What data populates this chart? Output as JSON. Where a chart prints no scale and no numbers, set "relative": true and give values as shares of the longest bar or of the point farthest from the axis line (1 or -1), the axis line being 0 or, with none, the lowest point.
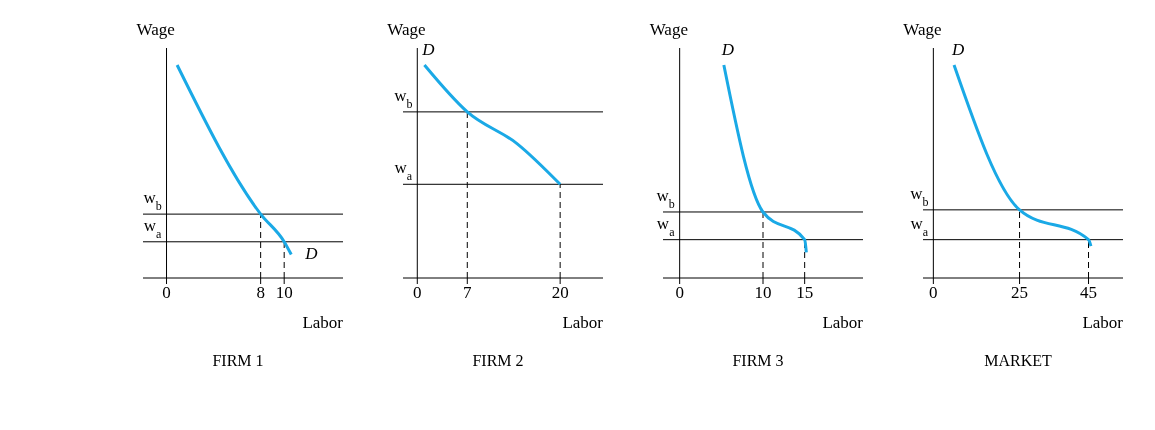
{
  "chart_data": [
    {
      "type": "line",
      "title": "FIRM 1",
      "xlabel": "Labor",
      "ylabel": "Wage",
      "relative": true,
      "xlim": [
        -2,
        15
      ],
      "xticks": [
        0,
        8,
        10
      ],
      "legend": false,
      "marker": "none",
      "annotations": [
        {
          "text": "D",
          "x": 10.6,
          "y": 0.11
        }
      ],
      "series": [
        {
          "color": "#1aa9e6",
          "x": [
            0.9,
            8,
            10,
            10.6
          ],
          "values": [
            1,
            0.3,
            0.17,
            0.11
          ]
        }
      ],
      "ref_lines": [
        {
          "axis": "y",
          "value": 0.3,
          "label": "w$_{b}$"
        },
        {
          "axis": "y",
          "value": 0.17,
          "label": "w$_{a}$"
        },
        {
          "axis": "x",
          "value": 8,
          "line_style": "dashed"
        },
        {
          "axis": "x",
          "value": 10,
          "line_style": "dashed"
        }
      ]
    },
    {
      "type": "line",
      "title": "FIRM 2",
      "xlabel": "Labor",
      "ylabel": "Wage",
      "relative": true,
      "xlim": [
        -2,
        26
      ],
      "xticks": [
        0,
        7,
        20
      ],
      "legend": false,
      "marker": "none",
      "annotations": [
        {
          "text": "D",
          "x": 1,
          "y": 1
        }
      ],
      "series": [
        {
          "color": "#1aa9e6",
          "x": [
            1,
            7,
            14,
            20
          ],
          "values": [
            1,
            0.78,
            0.63,
            0.44
          ]
        }
      ],
      "ref_lines": [
        {
          "axis": "y",
          "value": 0.78,
          "label": "w$_{b}$"
        },
        {
          "axis": "y",
          "value": 0.44,
          "label": "w$_{a}$"
        },
        {
          "axis": "x",
          "value": 7,
          "line_style": "dashed"
        },
        {
          "axis": "x",
          "value": 20,
          "line_style": "dashed"
        }
      ]
    },
    {
      "type": "line",
      "title": "FIRM 3",
      "xlabel": "Labor",
      "ylabel": "Wage",
      "relative": true,
      "xlim": [
        -2,
        22
      ],
      "xticks": [
        0,
        10,
        15
      ],
      "legend": false,
      "marker": "none",
      "annotations": [
        {
          "text": "D",
          "x": 5.3,
          "y": 1
        }
      ],
      "series": [
        {
          "color": "#1aa9e6",
          "x": [
            5.3,
            10,
            15,
            15.2
          ],
          "values": [
            1,
            0.31,
            0.18,
            0.12
          ]
        }
      ],
      "ref_lines": [
        {
          "axis": "y",
          "value": 0.31,
          "label": "w$_{b}$"
        },
        {
          "axis": "y",
          "value": 0.18,
          "label": "w$_{a}$"
        },
        {
          "axis": "x",
          "value": 10,
          "line_style": "dashed"
        },
        {
          "axis": "x",
          "value": 15,
          "line_style": "dashed"
        }
      ]
    },
    {
      "type": "line",
      "title": "MARKET",
      "xlabel": "Labor",
      "ylabel": "Wage",
      "relative": true,
      "xlim": [
        -3,
        55
      ],
      "xticks": [
        0,
        25,
        45
      ],
      "legend": false,
      "marker": "none",
      "annotations": [
        {
          "text": "D",
          "x": 6,
          "y": 1
        }
      ],
      "series": [
        {
          "color": "#1aa9e6",
          "x": [
            6,
            25,
            45,
            45.7
          ],
          "values": [
            1,
            0.32,
            0.18,
            0.15
          ]
        }
      ],
      "ref_lines": [
        {
          "axis": "y",
          "value": 0.32,
          "label": "w$_{b}$"
        },
        {
          "axis": "y",
          "value": 0.18,
          "label": "w$_{a}$"
        },
        {
          "axis": "x",
          "value": 25,
          "line_style": "dashed"
        },
        {
          "axis": "x",
          "value": 45,
          "line_style": "dashed"
        }
      ]
    }
  ]
}
